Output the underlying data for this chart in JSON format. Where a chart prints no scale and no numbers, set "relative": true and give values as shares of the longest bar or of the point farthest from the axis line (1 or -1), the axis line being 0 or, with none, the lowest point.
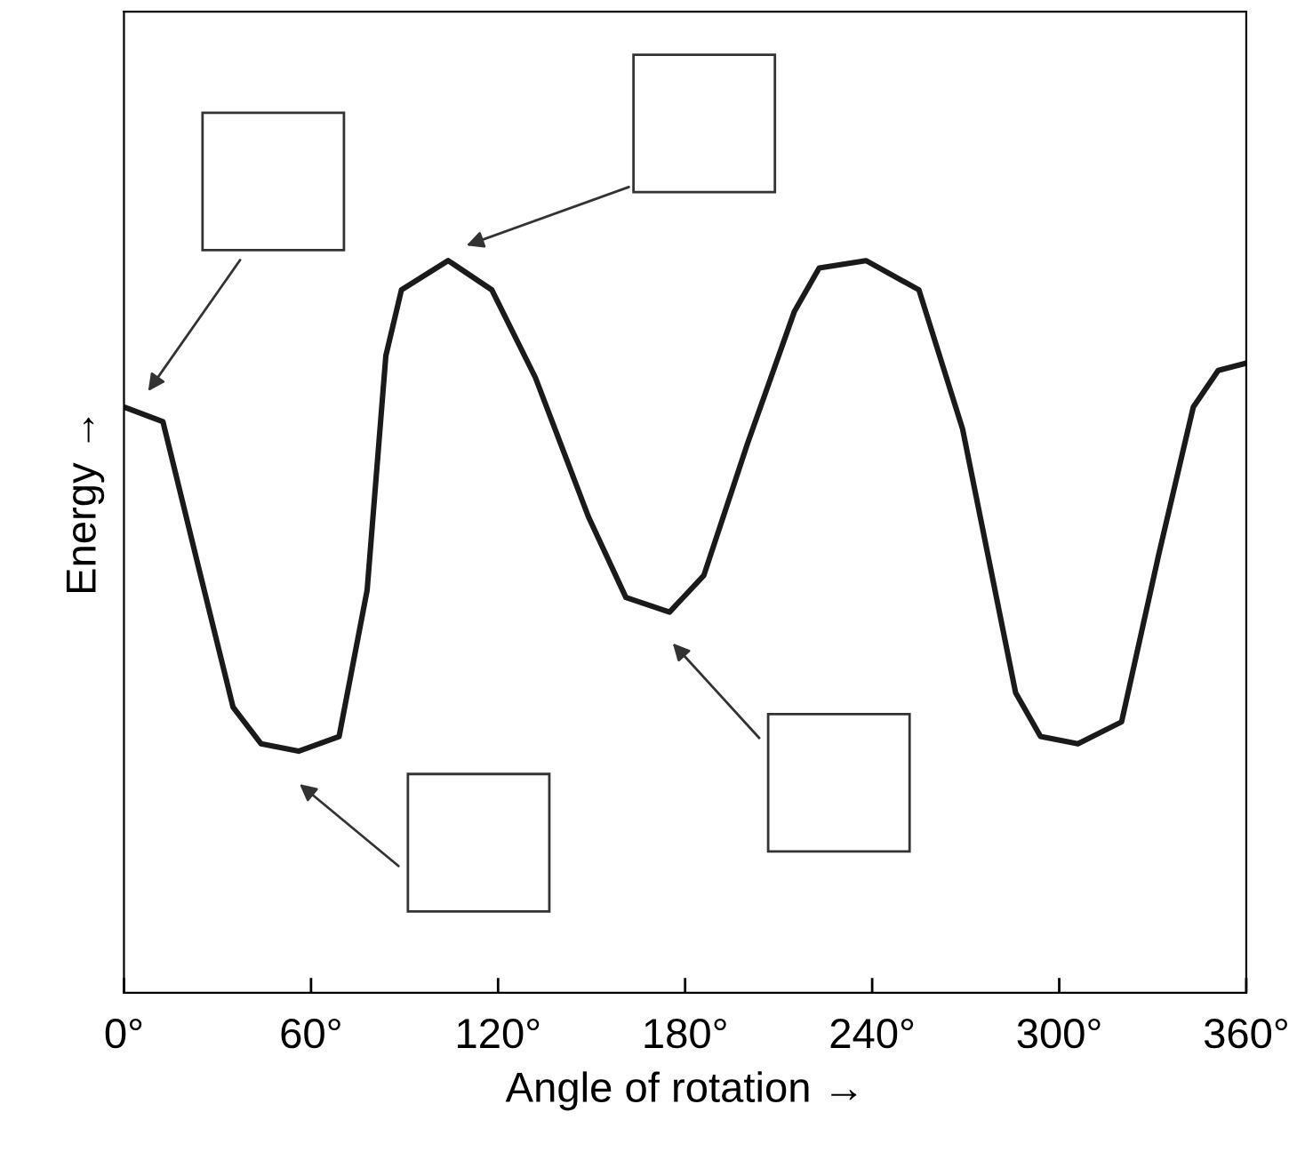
{
  "chart_data": {
    "type": "line",
    "relative": true,
    "xlabel": "Angle of rotation →",
    "ylabel": "Energy →",
    "x": [
      0,
      12.5,
      24,
      35,
      44,
      56,
      69,
      78,
      84,
      89,
      104,
      118,
      132,
      149,
      161,
      175,
      186,
      200,
      215,
      223,
      238,
      255,
      269,
      286,
      294,
      306,
      320,
      332,
      343,
      351,
      360
    ],
    "series": [
      {
        "color": "#1a1a1a",
        "values": [
          0.8,
          0.78,
          0.58,
          0.39,
          0.34,
          0.33,
          0.35,
          0.55,
          0.87,
          0.96,
          1.0,
          0.96,
          0.84,
          0.65,
          0.54,
          0.52,
          0.57,
          0.75,
          0.93,
          0.99,
          1.0,
          0.96,
          0.77,
          0.41,
          0.35,
          0.34,
          0.37,
          0.6,
          0.8,
          0.85,
          0.86
        ]
      }
    ],
    "xlim": [
      0,
      360
    ],
    "xticks": [
      {
        "value": 0,
        "label": "0°"
      },
      {
        "value": 60,
        "label": "60°"
      },
      {
        "value": 120,
        "label": "120°"
      },
      {
        "value": 180,
        "label": "180°"
      },
      {
        "value": 240,
        "label": "240°"
      },
      {
        "value": 300,
        "label": "300°"
      },
      {
        "value": 360,
        "label": "360°"
      }
    ],
    "marker": "none",
    "line_style": "solid",
    "grid": false,
    "legend": false
  }
}
